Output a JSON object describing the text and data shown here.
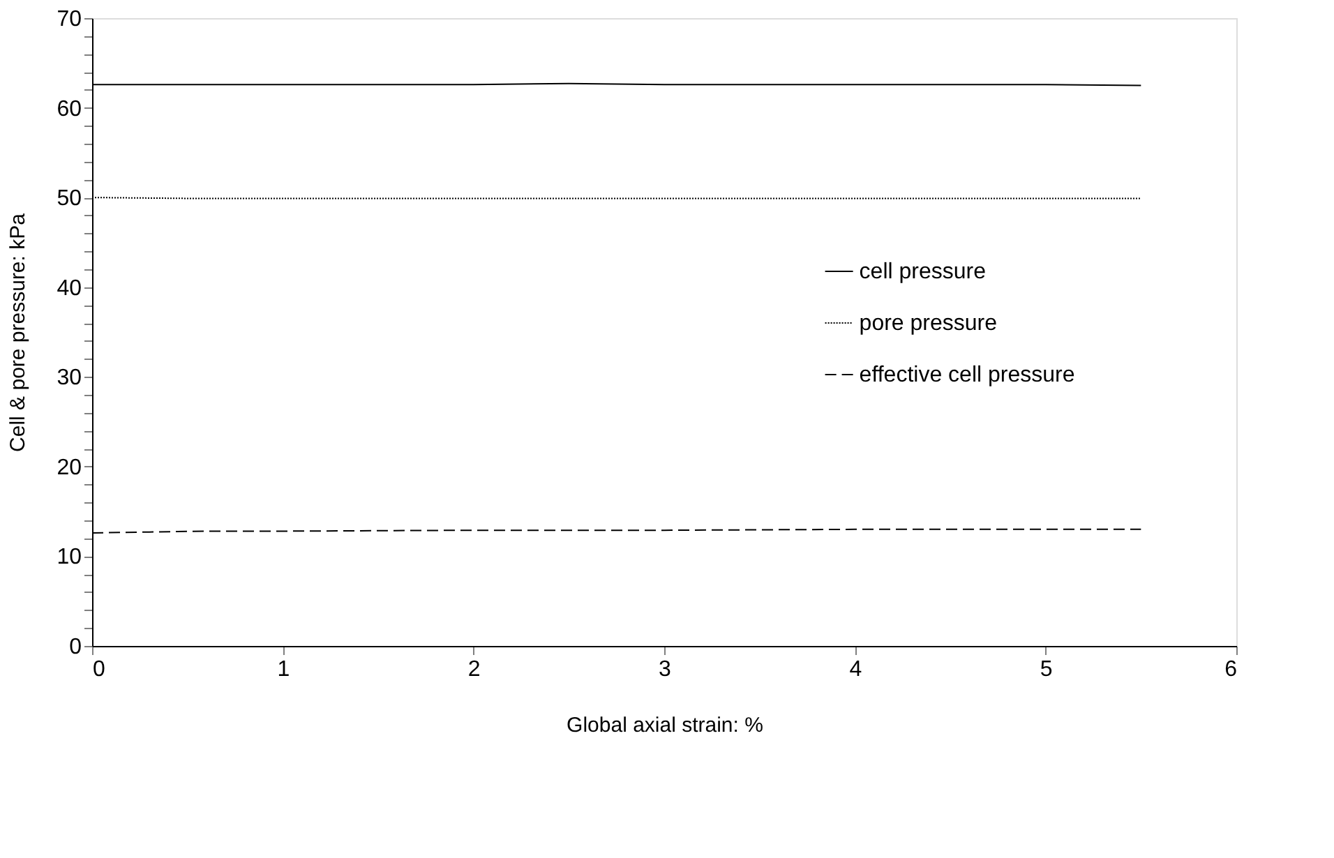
{
  "chart_data": {
    "type": "line",
    "xlabel": "Global axial strain: %",
    "ylabel": "Cell & pore pressure: kPa",
    "series": [
      {
        "name": "cell pressure",
        "color": "#000000",
        "line_style": "solid",
        "x": [
          0,
          0.5,
          1,
          1.5,
          2,
          2.5,
          3,
          3.5,
          4,
          4.5,
          5,
          5.5
        ],
        "values": [
          62.6,
          62.6,
          62.6,
          62.6,
          62.6,
          62.7,
          62.6,
          62.6,
          62.6,
          62.6,
          62.6,
          62.5
        ]
      },
      {
        "name": "pore pressure",
        "color": "#000000",
        "line_style": "dotted",
        "x": [
          0,
          0.5,
          1,
          2,
          3,
          4,
          5,
          5.5
        ],
        "values": [
          50.0,
          49.9,
          49.9,
          49.9,
          49.9,
          49.9,
          49.9,
          49.9
        ]
      },
      {
        "name": "effective cell pressure",
        "color": "#000000",
        "line_style": "dashed",
        "x": [
          0,
          0.3,
          0.6,
          1,
          2,
          3,
          4,
          5,
          5.5
        ],
        "values": [
          12.6,
          12.7,
          12.8,
          12.8,
          12.9,
          12.9,
          13.0,
          13.0,
          13.0
        ]
      }
    ],
    "xlim": [
      0,
      6
    ],
    "xticks": [
      0,
      1,
      2,
      3,
      4,
      5,
      6
    ],
    "ylim": [
      0,
      70
    ],
    "yticks": [
      0,
      {
        "value": 2,
        "label": null
      },
      {
        "value": 4,
        "label": null
      },
      {
        "value": 6,
        "label": null
      },
      {
        "value": 8,
        "label": null
      },
      10,
      {
        "value": 12,
        "label": null
      },
      {
        "value": 14,
        "label": null
      },
      {
        "value": 16,
        "label": null
      },
      {
        "value": 18,
        "label": null
      },
      20,
      {
        "value": 22,
        "label": null
      },
      {
        "value": 24,
        "label": null
      },
      {
        "value": 26,
        "label": null
      },
      {
        "value": 28,
        "label": null
      },
      30,
      {
        "value": 32,
        "label": null
      },
      {
        "value": 34,
        "label": null
      },
      {
        "value": 36,
        "label": null
      },
      {
        "value": 38,
        "label": null
      },
      40,
      {
        "value": 42,
        "label": null
      },
      {
        "value": 44,
        "label": null
      },
      {
        "value": 46,
        "label": null
      },
      {
        "value": 48,
        "label": null
      },
      50,
      {
        "value": 52,
        "label": null
      },
      {
        "value": 54,
        "label": null
      },
      {
        "value": 56,
        "label": null
      },
      {
        "value": 58,
        "label": null
      },
      60,
      {
        "value": 62,
        "label": null
      },
      {
        "value": 64,
        "label": null
      },
      {
        "value": 66,
        "label": null
      },
      {
        "value": 68,
        "label": null
      },
      70
    ],
    "grid": false,
    "legend": "right",
    "marker": "none"
  }
}
